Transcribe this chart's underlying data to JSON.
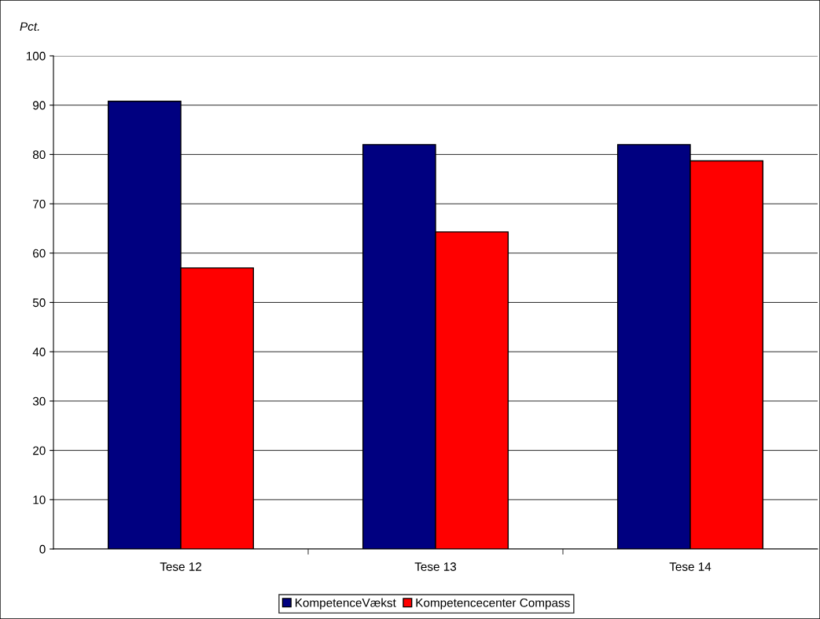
{
  "chart_data": {
    "type": "bar",
    "ylabel": "Pct.",
    "categories": [
      "Tese 12",
      "Tese 13",
      "Tese 14"
    ],
    "series": [
      {
        "name": "KompetenceVækst",
        "color": "#000080",
        "values": [
          90.8,
          82.0,
          82.0
        ]
      },
      {
        "name": "Kompetencecenter Compass",
        "color": "#ff0000",
        "values": [
          57.0,
          64.3,
          78.7
        ]
      }
    ],
    "ylim": [
      0,
      100
    ],
    "yticks": [
      0,
      10,
      20,
      30,
      40,
      50,
      60,
      70,
      80,
      90,
      100
    ],
    "grid": "y",
    "legend": "bottom"
  }
}
